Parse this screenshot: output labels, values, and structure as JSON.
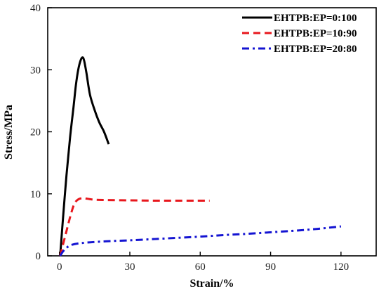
{
  "chart_data": {
    "type": "line",
    "title": "",
    "xlabel": "Strain/%",
    "ylabel": "Stress/MPa",
    "xlim": [
      -5,
      135
    ],
    "ylim": [
      0,
      40
    ],
    "xticks": [
      0,
      30,
      60,
      90,
      120
    ],
    "yticks": [
      0,
      10,
      20,
      30,
      40
    ],
    "grid": false,
    "legend_position": "top-right",
    "series": [
      {
        "name": "EHTPB:EP=0:100",
        "color": "#000000",
        "style": "solid",
        "x": [
          0.3,
          1.5,
          3,
          4.5,
          6,
          7,
          8,
          9,
          9.8,
          10.5,
          11.5,
          13,
          15,
          17,
          19,
          21
        ],
        "y": [
          0,
          6,
          13,
          19,
          24,
          27.5,
          30,
          31.5,
          32,
          31.5,
          29.5,
          26,
          23.5,
          21.5,
          20,
          18
        ]
      },
      {
        "name": "EHTPB:EP=10:90",
        "color": "#e8171d",
        "style": "dashed",
        "x": [
          0.3,
          1.5,
          3,
          4.5,
          5.5,
          6.5,
          8,
          10,
          12,
          15,
          20,
          30,
          40,
          50,
          60,
          64
        ],
        "y": [
          0,
          1.8,
          4,
          6.2,
          7.5,
          8.5,
          9.1,
          9.3,
          9.2,
          9.05,
          9.0,
          8.95,
          8.9,
          8.9,
          8.9,
          8.9
        ]
      },
      {
        "name": "EHTPB:EP=20:80",
        "color": "#1414d2",
        "style": "dashdot",
        "x": [
          0.3,
          1.5,
          3,
          5,
          8,
          12,
          20,
          30,
          40,
          50,
          60,
          70,
          80,
          90,
          100,
          110,
          120
        ],
        "y": [
          0,
          0.7,
          1.3,
          1.75,
          2.0,
          2.15,
          2.35,
          2.5,
          2.7,
          2.9,
          3.1,
          3.35,
          3.55,
          3.8,
          4.05,
          4.35,
          4.75
        ]
      }
    ]
  }
}
